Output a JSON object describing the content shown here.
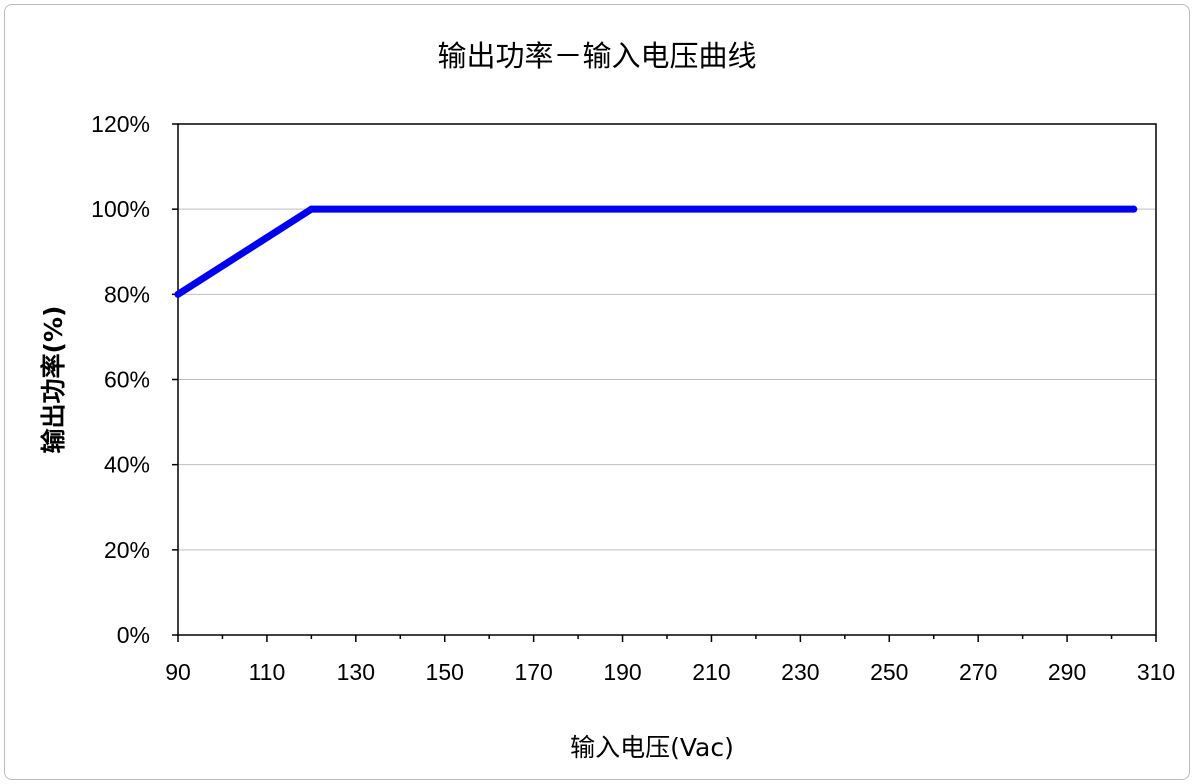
{
  "chart_data": {
    "type": "line",
    "title": "输出功率－输入电压曲线",
    "xlabel": "输入电压(Vac)",
    "ylabel": "输出功率(%)",
    "xlim": [
      90,
      310
    ],
    "ylim": [
      0,
      120
    ],
    "x_ticks": [
      "90",
      "110",
      "130",
      "150",
      "170",
      "190",
      "210",
      "230",
      "250",
      "270",
      "290",
      "310"
    ],
    "y_ticks": [
      "0%",
      "20%",
      "40%",
      "60%",
      "80%",
      "100%",
      "120%"
    ],
    "grid": "horizontal",
    "legend": "none",
    "series": [
      {
        "color": "#0000ee",
        "points": [
          {
            "x": 90,
            "y": 80
          },
          {
            "x": 120,
            "y": 100
          },
          {
            "x": 305,
            "y": 100
          }
        ]
      }
    ]
  }
}
